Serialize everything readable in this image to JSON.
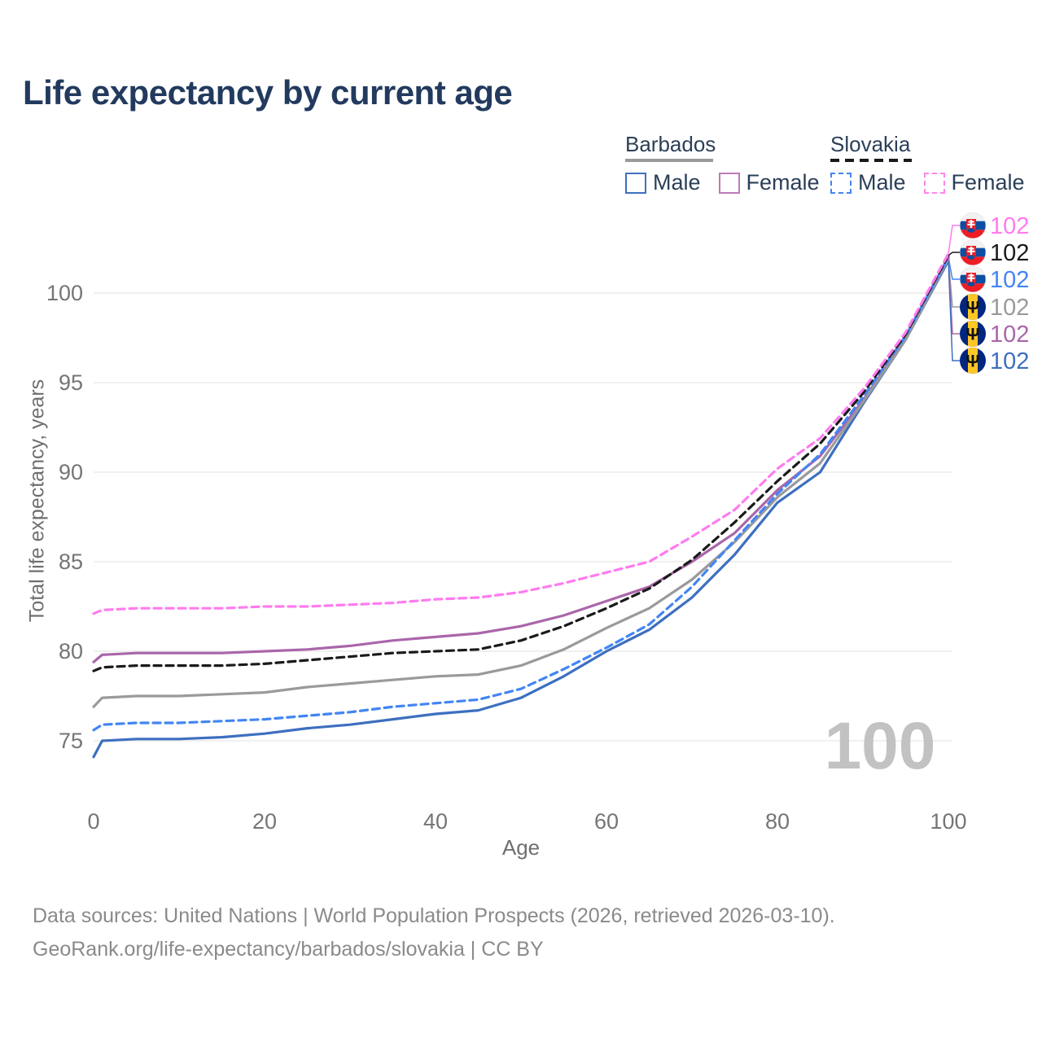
{
  "title": "Life expectancy by current age",
  "watermark_age": "100",
  "legend": {
    "groups": [
      {
        "name": "Barbados",
        "line_style": "solid",
        "underline_color": "#9a9a9a",
        "items": [
          {
            "label": "Male",
            "color": "#3d6fc0",
            "dashed": false
          },
          {
            "label": "Female",
            "color": "#bb7ab8",
            "dashed": false
          }
        ]
      },
      {
        "name": "Slovakia",
        "line_style": "dashed",
        "underline_color": "#1a1a1a",
        "items": [
          {
            "label": "Male",
            "color": "#4285f4",
            "dashed": true
          },
          {
            "label": "Female",
            "color": "#ff85ea",
            "dashed": true
          }
        ]
      }
    ]
  },
  "footer": {
    "line1": "Data sources: United Nations | World Population Prospects (2026, retrieved 2026-03-10).",
    "line2": "GeoRank.org/life-expectancy/barbados/slovakia | CC BY"
  },
  "chart_data": {
    "type": "line",
    "title": "Life expectancy by current age",
    "xlabel": "Age",
    "ylabel": "Total life expectancy, years",
    "x_ticks": [
      0,
      20,
      40,
      60,
      80,
      100
    ],
    "y_ticks": [
      75,
      80,
      85,
      90,
      95,
      100
    ],
    "xlim": [
      0,
      100
    ],
    "ylim": [
      73.5,
      102.5
    ],
    "grid": "horizontal",
    "legend_position": "top-right",
    "ages": [
      0,
      1,
      5,
      10,
      15,
      20,
      25,
      30,
      35,
      40,
      45,
      50,
      55,
      60,
      65,
      70,
      75,
      80,
      85,
      90,
      95,
      100
    ],
    "series": [
      {
        "name": "Slovakia Female",
        "country": "Slovakia",
        "sex": "Female",
        "color": "#ff7bef",
        "dash": true,
        "end_label": "102",
        "values": [
          82.1,
          82.3,
          82.4,
          82.4,
          82.4,
          82.5,
          82.5,
          82.6,
          82.7,
          82.9,
          83.0,
          83.3,
          83.8,
          84.4,
          85.0,
          86.4,
          87.9,
          90.2,
          91.9,
          94.6,
          97.8,
          102.2
        ]
      },
      {
        "name": "Slovakia Both sexes",
        "country": "Slovakia",
        "sex": "Both",
        "color": "#1a1a1a",
        "dash": true,
        "end_label": "102",
        "values": [
          78.9,
          79.1,
          79.2,
          79.2,
          79.2,
          79.3,
          79.5,
          79.7,
          79.9,
          80.0,
          80.1,
          80.6,
          81.4,
          82.4,
          83.5,
          85.1,
          87.2,
          89.5,
          91.6,
          94.4,
          97.7,
          102.1
        ]
      },
      {
        "name": "Slovakia Male",
        "country": "Slovakia",
        "sex": "Male",
        "color": "#4285f4",
        "dash": true,
        "end_label": "102",
        "values": [
          75.6,
          75.9,
          76.0,
          76.0,
          76.1,
          76.2,
          76.4,
          76.6,
          76.9,
          77.1,
          77.3,
          77.9,
          79.0,
          80.2,
          81.5,
          83.6,
          86.2,
          88.8,
          91.0,
          94.2,
          97.6,
          102.0
        ]
      },
      {
        "name": "Barbados Both sexes",
        "country": "Barbados",
        "sex": "Both",
        "color": "#9a9a9a",
        "dash": false,
        "end_label": "102",
        "values": [
          76.9,
          77.4,
          77.5,
          77.5,
          77.6,
          77.7,
          78.0,
          78.2,
          78.4,
          78.6,
          78.7,
          79.2,
          80.1,
          81.3,
          82.4,
          84.0,
          86.1,
          88.6,
          90.5,
          93.9,
          97.4,
          101.9
        ]
      },
      {
        "name": "Barbados Female",
        "country": "Barbados",
        "sex": "Female",
        "color": "#aa66aa",
        "dash": false,
        "end_label": "102",
        "values": [
          79.4,
          79.8,
          79.9,
          79.9,
          79.9,
          80.0,
          80.1,
          80.3,
          80.6,
          80.8,
          81.0,
          81.4,
          82.0,
          82.8,
          83.6,
          85.0,
          86.6,
          89.0,
          90.9,
          94.0,
          97.5,
          102.0
        ]
      },
      {
        "name": "Barbados Male",
        "country": "Barbados",
        "sex": "Male",
        "color": "#3d6fc0",
        "dash": false,
        "end_label": "102",
        "values": [
          74.1,
          75.0,
          75.1,
          75.1,
          75.2,
          75.4,
          75.7,
          75.9,
          76.2,
          76.5,
          76.7,
          77.4,
          78.6,
          80.0,
          81.2,
          83.0,
          85.4,
          88.3,
          90.0,
          93.8,
          97.4,
          101.8
        ]
      }
    ],
    "flag_colors": {
      "slovakia_white": "#f2f2f2",
      "slovakia_blue": "#0b4ea2",
      "slovakia_red": "#ee1c25",
      "barbados_blue": "#00267f",
      "barbados_yellow": "#ffc726",
      "barbados_trident": "#111111"
    },
    "style": {
      "grid_color": "#ebebeb",
      "tick_color": "#757575",
      "watermark_color": "#c2c2c2",
      "title_color": "#223a5e",
      "footer_color": "#8a8a8a"
    }
  }
}
